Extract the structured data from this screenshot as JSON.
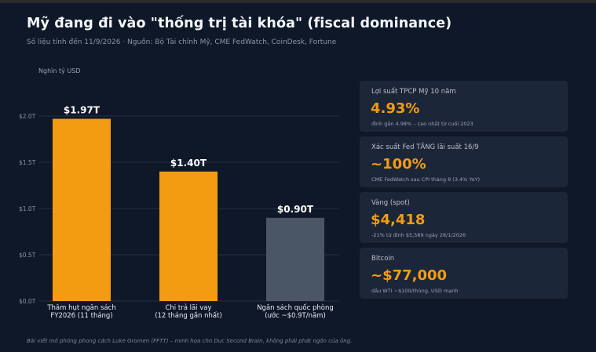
{
  "title": "Mỹ đang đi vào \"thống trị tài khóa\" (fiscal dominance)",
  "subtitle": "Số liệu tính đến 11/9/2026 · Nguồn: Bộ Tài chính Mỹ, CME FedWatch, CoinDesk, Fortune",
  "footnote": "Bài viết mô phỏng phong cách Luke Gromen (FFTT) – minh họa cho Duc Second Brain, không phải phát ngôn của ông.",
  "colors": {
    "background": "#0f1828",
    "accent": "#f39c12",
    "bar_orange": "#f39c12",
    "bar_gray": "#4a5566",
    "card_bg": "#1b2638"
  },
  "chart_data": {
    "type": "bar",
    "unit_label": "Nghìn tỷ USD",
    "categories": [
      [
        "Thâm hụt ngân sách",
        "FY2026 (11 tháng)"
      ],
      [
        "Chi trả lãi vay",
        "(12 tháng gần nhất)"
      ],
      [
        "Ngân sách quốc phòng",
        "(ước ~$0.9T/năm)"
      ]
    ],
    "values": [
      1.97,
      1.4,
      0.9
    ],
    "data_labels": [
      "$1.97T",
      "$1.40T",
      "$0.90T"
    ],
    "bar_colors": [
      "#f39c12",
      "#f39c12",
      "#4a5566"
    ],
    "ylim": [
      0,
      2.0
    ],
    "yticks": [
      0,
      0.5,
      1.0,
      1.5,
      2.0
    ],
    "ytick_labels": [
      "$0.0T",
      "$0.5T",
      "$1.0T",
      "$1.5T",
      "$2.0T"
    ],
    "grid": true
  },
  "cards": [
    {
      "label": "Lợi suất TPCP Mỹ 10 năm",
      "value": "4.93%",
      "note": "đỉnh gần 4.98% – cao nhất từ cuối 2023"
    },
    {
      "label": "Xác suất Fed TĂNG lãi suất 16/9",
      "value": "~100%",
      "note": "CME FedWatch sau CPI tháng 8 (3.4% YoY)"
    },
    {
      "label": "Vàng (spot)",
      "value": "$4,418",
      "note": "-21% từ đỉnh $5,589 ngày 28/1/2026"
    },
    {
      "label": "Bitcoin",
      "value": "~$77,000",
      "note": "dầu WTI ~$100/thùng, USD mạnh"
    }
  ]
}
